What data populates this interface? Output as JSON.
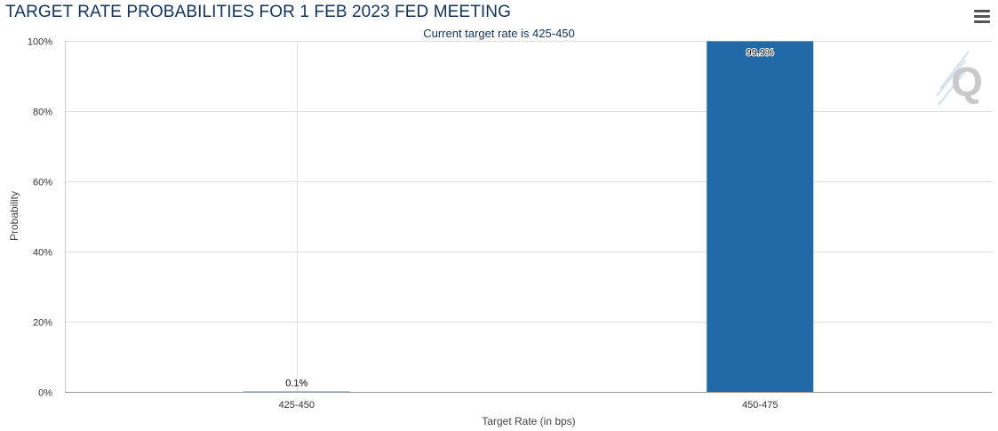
{
  "header": {
    "title": "TARGET RATE PROBABILITIES FOR 1 FEB 2023 FED MEETING",
    "menu_icon": "hamburger-menu-icon"
  },
  "watermark_icon": "q-logo-icon",
  "chart_data": {
    "type": "bar",
    "title": "TARGET RATE PROBABILITIES FOR 1 FEB 2023 FED MEETING",
    "subtitle": "Current target rate is 425-450",
    "categories": [
      "425-450",
      "450-475"
    ],
    "values": [
      0.1,
      99.9
    ],
    "data_labels": [
      "0.1%",
      "99.9%"
    ],
    "xlabel": "Target Rate (in bps)",
    "ylabel": "Probability",
    "ylim": [
      0,
      100
    ],
    "yticks": [
      0,
      20,
      40,
      60,
      80,
      100
    ],
    "ytick_labels": [
      "0%",
      "20%",
      "40%",
      "60%",
      "80%",
      "100%"
    ],
    "grid": true,
    "bar_color": "#2269a8"
  }
}
